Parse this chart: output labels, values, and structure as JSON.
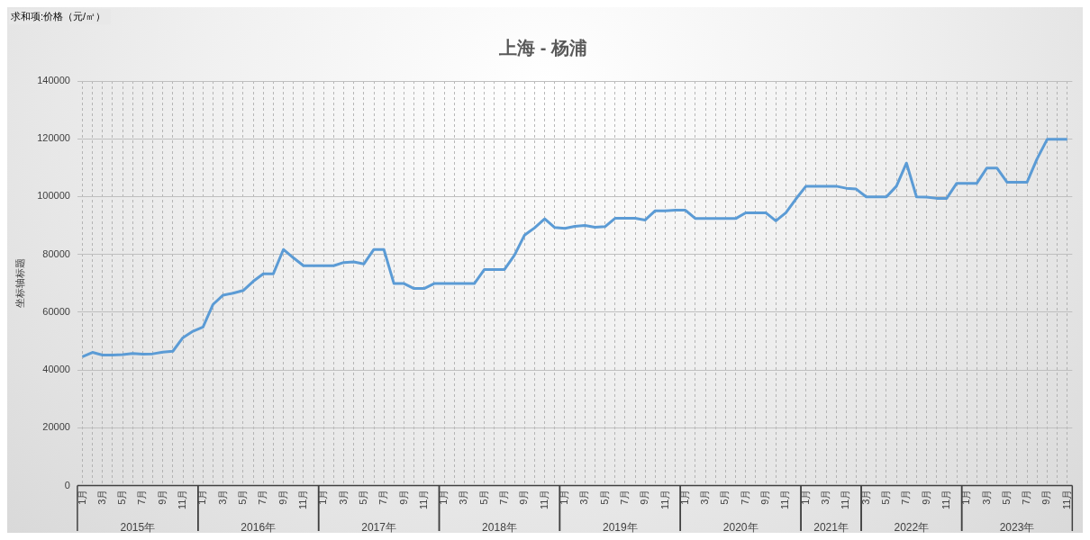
{
  "chart_data": {
    "type": "line",
    "title": "上海 - 杨浦",
    "ylabel": "坐标轴标题",
    "categories": [
      "1月",
      null,
      "3月",
      null,
      "5月",
      null,
      "7月",
      null,
      "9月",
      null,
      "11月",
      null,
      "1月",
      null,
      "3月",
      null,
      "5月",
      null,
      "7月",
      null,
      "9月",
      null,
      "11月",
      null,
      "1月",
      null,
      "3月",
      null,
      "5月",
      null,
      "7月",
      null,
      "9月",
      null,
      "11月",
      null,
      "1月",
      null,
      "3月",
      null,
      "5月",
      null,
      "7月",
      null,
      "9月",
      null,
      "11月",
      null,
      "1月",
      null,
      "3月",
      null,
      "5月",
      null,
      "7月",
      null,
      "9月",
      null,
      "11月",
      null,
      "1月",
      null,
      "3月",
      null,
      "5月",
      null,
      "7月",
      null,
      "9月",
      null,
      "11月",
      null,
      "1月",
      null,
      "3月",
      null,
      "11月",
      null,
      "3月",
      null,
      "5月",
      null,
      "7月",
      null,
      "9月",
      null,
      "11月",
      null,
      "1月",
      null,
      "3月",
      null,
      "5月",
      null,
      "7月",
      null,
      "9月",
      null,
      "11月"
    ],
    "series": [
      {
        "color": "#5b9bd5",
        "values": [
          44600,
          46100,
          45200,
          45200,
          45300,
          45700,
          45500,
          45600,
          46200,
          46500,
          51200,
          53400,
          54900,
          62700,
          65900,
          66600,
          67500,
          70700,
          73300,
          73300,
          81700,
          78800,
          76100,
          76100,
          76100,
          76100,
          77200,
          77400,
          76700,
          81700,
          81700,
          69900,
          69900,
          68200,
          68200,
          69900,
          69900,
          69900,
          69900,
          69900,
          74800,
          74800,
          74800,
          79800,
          86700,
          89200,
          92300,
          89300,
          89000,
          89700,
          90000,
          89400,
          89600,
          92500,
          92500,
          92500,
          91900,
          95100,
          95100,
          95300,
          95300,
          92400,
          92400,
          92400,
          92400,
          92400,
          94400,
          94400,
          94400,
          91600,
          94400,
          99200,
          103600,
          103600,
          103600,
          103600,
          102900,
          102600,
          99900,
          99900,
          99900,
          103600,
          111600,
          99900,
          99800,
          99400,
          99400,
          104600,
          104600,
          104600,
          109900,
          109900,
          105000,
          105000,
          105000,
          113100,
          119800,
          119800,
          119800
        ]
      }
    ],
    "ylim": [
      0,
      140000
    ],
    "yticks": [
      0,
      20000,
      40000,
      60000,
      80000,
      100000,
      120000,
      140000
    ],
    "grid": true,
    "legend": false,
    "marker": "none",
    "line_style": "solid",
    "annotations": [
      "求和项:价格（元/㎡）",
      "2015年",
      "2016年",
      "2017年",
      "2018年",
      "2019年",
      "2020年",
      "2021年",
      "2022年",
      "2023年"
    ]
  }
}
